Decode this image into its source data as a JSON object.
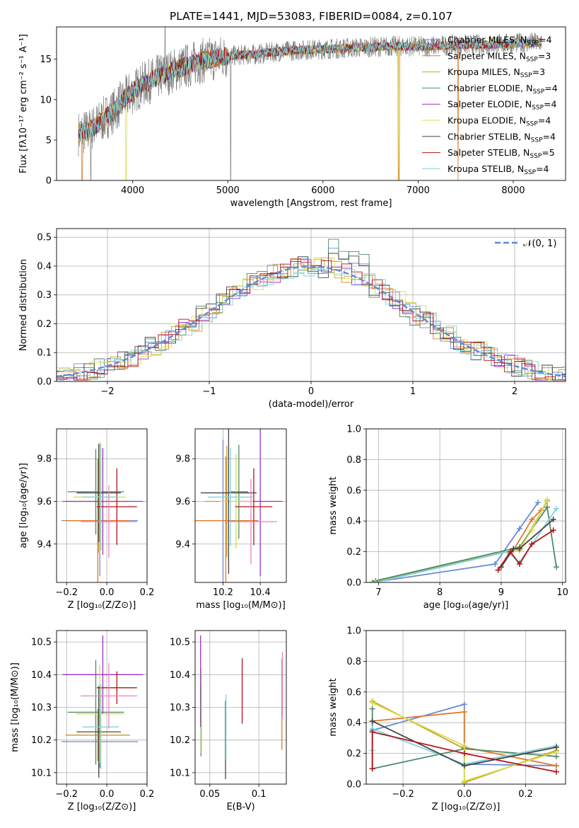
{
  "colors": {
    "grid": "#b0b0b0",
    "axis": "#000000",
    "background": "#ffffff"
  },
  "chart_data": [
    {
      "type": "line",
      "title": "PLATE=1441, MJD=53083, FIBERID=0084, z=0.107",
      "xlabel": "wavelength [Angstrom, rest frame]",
      "ylabel": "Flux [fλ10⁻¹⁷ erg cm⁻² s⁻¹ A⁻¹]",
      "xlim": [
        3200,
        8550
      ],
      "ylim": [
        0,
        19
      ],
      "xticks": [
        4000,
        5000,
        6000,
        7000,
        8000
      ],
      "yticks": [
        0,
        5,
        10,
        15
      ],
      "grid": false,
      "legend_position": "upper right",
      "spectrum_envelope": {
        "x": [
          3430,
          3550,
          3650,
          3800,
          3950,
          4100,
          4300,
          4500,
          4700,
          4900,
          5100,
          5300,
          5500,
          5700,
          5900,
          6100,
          6300,
          6500,
          6700,
          6900,
          7100,
          7300,
          7500,
          7700,
          7900,
          8100,
          8300
        ],
        "y": [
          5.8,
          6.2,
          7.2,
          8.6,
          10.5,
          11.8,
          13.0,
          13.9,
          14.7,
          15.2,
          15.5,
          15.6,
          15.9,
          16.1,
          16.2,
          16.3,
          16.4,
          16.5,
          16.6,
          16.6,
          16.6,
          16.7,
          16.8,
          16.8,
          16.9,
          17.0,
          17.1
        ]
      },
      "series": [
        {
          "name": "Chabrier MILES, N",
          "sub": "SSP",
          "value": "=4",
          "color": "#6a8bd6"
        },
        {
          "name": "Salpeter MILES, N",
          "sub": "SSP",
          "value": "=3",
          "color": "#e07a26"
        },
        {
          "name": "Kroupa MILES, N",
          "sub": "SSP",
          "value": "=3",
          "color": "#c8a030"
        },
        {
          "name": "Chabrier ELODIE, N",
          "sub": "SSP",
          "value": "=4",
          "color": "#4f8a66"
        },
        {
          "name": "Salpeter ELODIE, N",
          "sub": "SSP",
          "value": "=4",
          "color": "#9b30c9"
        },
        {
          "name": "Kroupa ELODIE, N",
          "sub": "SSP",
          "value": "=4",
          "color": "#d8dd48"
        },
        {
          "name": "Chabrier STELIB, N",
          "sub": "SSP",
          "value": "=4",
          "color": "#444444"
        },
        {
          "name": "Salpeter STELIB, N",
          "sub": "SSP",
          "value": "=5",
          "color": "#b0151b"
        },
        {
          "name": "Kroupa STELIB, N",
          "sub": "SSP",
          "value": "=4",
          "color": "#7fd3dc"
        }
      ],
      "observed_color": "#808080"
    },
    {
      "type": "line",
      "xlabel": "(data-model)/error",
      "ylabel": "Normed distribution",
      "xlim": [
        -2.5,
        2.5
      ],
      "ylim": [
        0,
        0.53
      ],
      "xticks": [
        -2,
        -1,
        0,
        1,
        2
      ],
      "yticks": [
        0.0,
        0.1,
        0.2,
        0.3,
        0.4,
        0.5
      ],
      "grid": true,
      "legend_position": "upper right",
      "legend": "𝒩(0, 1)",
      "gauss_color": "#5f8ad8"
    },
    {
      "type": "scatter",
      "xlabel": "Z [log₁₀(Z/Z⊙)]",
      "ylabel": "age  [log₁₀(age/yr)]",
      "xlim": [
        -0.25,
        0.2
      ],
      "ylim": [
        9.22,
        9.94
      ],
      "xticks": [
        -0.2,
        0.0,
        0.2
      ],
      "yticks": [
        9.4,
        9.6,
        9.8
      ],
      "grid": true,
      "points": [
        {
          "x": -0.035,
          "y": 9.51,
          "xerr": 0.19,
          "yerr": 0.26,
          "color": "#6a8bd6"
        },
        {
          "x": -0.045,
          "y": 9.51,
          "xerr": 0.16,
          "yerr": 0.29,
          "color": "#e07a26"
        },
        {
          "x": -0.04,
          "y": 9.6,
          "xerr": 0.15,
          "yerr": 0.24,
          "color": "#c8a030"
        },
        {
          "x": -0.055,
          "y": 9.645,
          "xerr": 0.14,
          "yerr": 0.2,
          "color": "#4f8a66"
        },
        {
          "x": -0.02,
          "y": 9.6,
          "xerr": 0.2,
          "yerr": 0.25,
          "color": "#9b30c9"
        },
        {
          "x": -0.035,
          "y": 9.62,
          "xerr": 0.13,
          "yerr": 0.26,
          "color": "#d8dd48"
        },
        {
          "x": -0.04,
          "y": 9.64,
          "xerr": 0.11,
          "yerr": 0.23,
          "color": "#444444"
        },
        {
          "x": 0.05,
          "y": 9.575,
          "xerr": 0.1,
          "yerr": 0.18,
          "color": "#b0151b"
        },
        {
          "x": -0.03,
          "y": 9.62,
          "xerr": 0.09,
          "yerr": 0.25,
          "color": "#7fd3dc"
        },
        {
          "x": 0.01,
          "y": 9.505,
          "xerr": 0.14,
          "yerr": 0.17,
          "color": "#ee82c0"
        }
      ]
    },
    {
      "type": "scatter",
      "xlabel": "mass [log₁₀(M/M⊙)]",
      "ylabel": "",
      "xlim": [
        10.05,
        10.54
      ],
      "ylim": [
        9.22,
        9.94
      ],
      "xticks": [
        10.2,
        10.4
      ],
      "yticks": [
        9.4,
        9.6,
        9.8
      ],
      "grid": true,
      "points": [
        {
          "x": 10.2,
          "y": 9.51,
          "xerr": 0.19,
          "yerr": 0.38,
          "color": "#6a8bd6"
        },
        {
          "x": 10.215,
          "y": 9.51,
          "xerr": 0.17,
          "yerr": 0.3,
          "color": "#e07a26"
        },
        {
          "x": 10.22,
          "y": 9.6,
          "xerr": 0.12,
          "yerr": 0.26,
          "color": "#c8a030"
        },
        {
          "x": 10.285,
          "y": 9.645,
          "xerr": 0.05,
          "yerr": 0.22,
          "color": "#4f8a66"
        },
        {
          "x": 10.4,
          "y": 9.6,
          "xerr": 0.12,
          "yerr": 0.35,
          "color": "#9b30c9"
        },
        {
          "x": 10.27,
          "y": 9.6,
          "xerr": 0.09,
          "yerr": 0.22,
          "color": "#d8dd48"
        },
        {
          "x": 10.23,
          "y": 9.64,
          "xerr": 0.15,
          "yerr": 0.38,
          "color": "#444444"
        },
        {
          "x": 10.365,
          "y": 9.575,
          "xerr": 0.1,
          "yerr": 0.18,
          "color": "#b0151b"
        },
        {
          "x": 10.24,
          "y": 9.62,
          "xerr": 0.12,
          "yerr": 0.23,
          "color": "#7fd3dc"
        },
        {
          "x": 10.35,
          "y": 9.505,
          "xerr": 0.14,
          "yerr": 0.2,
          "color": "#ee82c0"
        }
      ]
    },
    {
      "type": "line",
      "xlabel": "age  [log₁₀(age/yr)]",
      "ylabel": "mass weight",
      "xlim": [
        6.8,
        10.05
      ],
      "ylim": [
        0,
        1
      ],
      "xticks": [
        7,
        8,
        9,
        10
      ],
      "yticks": [
        0.0,
        0.2,
        0.4,
        0.6,
        0.8,
        1.0
      ],
      "grid": true,
      "series": [
        {
          "color": "#6a8bd6",
          "x": [
            6.9,
            8.9,
            9.3,
            9.6
          ],
          "y": [
            0.0,
            0.12,
            0.35,
            0.52
          ]
        },
        {
          "color": "#e07a26",
          "x": [
            6.9,
            9.2,
            9.5,
            9.65
          ],
          "y": [
            0.0,
            0.21,
            0.41,
            0.47
          ]
        },
        {
          "color": "#c8a030",
          "x": [
            6.9,
            9.2,
            9.3,
            9.75
          ],
          "y": [
            0.0,
            0.21,
            0.21,
            0.53
          ]
        },
        {
          "color": "#4f8a66",
          "x": [
            6.95,
            9.3,
            9.75,
            9.9
          ],
          "y": [
            0.01,
            0.23,
            0.49,
            0.1
          ]
        },
        {
          "color": "#d8dd48",
          "x": [
            6.95,
            9.3,
            9.5,
            9.75
          ],
          "y": [
            0.0,
            0.22,
            0.34,
            0.54
          ]
        },
        {
          "color": "#7fd3dc",
          "x": [
            6.95,
            9.1,
            9.3,
            9.9
          ],
          "y": [
            0.0,
            0.2,
            0.13,
            0.48
          ]
        },
        {
          "color": "#444444",
          "x": [
            9.0,
            9.2,
            9.3,
            9.85
          ],
          "y": [
            0.1,
            0.22,
            0.22,
            0.41
          ]
        },
        {
          "color": "#b0151b",
          "x": [
            8.95,
            9.15,
            9.3,
            9.5,
            9.85
          ],
          "y": [
            0.08,
            0.2,
            0.12,
            0.25,
            0.34
          ]
        }
      ]
    },
    {
      "type": "scatter",
      "xlabel": "Z [log₁₀(Z/Z⊙)]",
      "ylabel": "mass [log₁₀(M/M⊙)]",
      "xlim": [
        -0.25,
        0.2
      ],
      "ylim": [
        10.065,
        10.535
      ],
      "xticks": [
        -0.2,
        0.0,
        0.2
      ],
      "yticks": [
        10.1,
        10.2,
        10.3,
        10.4,
        10.5
      ],
      "grid": true,
      "points": [
        {
          "x": -0.035,
          "y": 10.195,
          "xerr": 0.19,
          "yerr": 0.08,
          "color": "#6a8bd6"
        },
        {
          "x": -0.045,
          "y": 10.215,
          "xerr": 0.16,
          "yerr": 0.08,
          "color": "#e07a26"
        },
        {
          "x": -0.04,
          "y": 10.215,
          "xerr": 0.15,
          "yerr": 0.12,
          "color": "#c8a030"
        },
        {
          "x": -0.055,
          "y": 10.285,
          "xerr": 0.14,
          "yerr": 0.16,
          "color": "#4f8a66"
        },
        {
          "x": -0.02,
          "y": 10.4,
          "xerr": 0.2,
          "yerr": 0.12,
          "color": "#9b30c9"
        },
        {
          "x": -0.035,
          "y": 10.28,
          "xerr": 0.12,
          "yerr": 0.15,
          "color": "#d8dd48"
        },
        {
          "x": -0.04,
          "y": 10.225,
          "xerr": 0.11,
          "yerr": 0.14,
          "color": "#444444"
        },
        {
          "x": 0.05,
          "y": 10.36,
          "xerr": 0.1,
          "yerr": 0.05,
          "color": "#b0151b"
        },
        {
          "x": -0.03,
          "y": 10.24,
          "xerr": 0.09,
          "yerr": 0.13,
          "color": "#7fd3dc"
        },
        {
          "x": 0.01,
          "y": 10.335,
          "xerr": 0.14,
          "yerr": 0.1,
          "color": "#ee82c0"
        }
      ]
    },
    {
      "type": "scatter",
      "xlabel": "E(B-V)",
      "ylabel": "",
      "xlim": [
        0.035,
        0.128
      ],
      "ylim": [
        10.065,
        10.535
      ],
      "xticks": [
        0.05,
        0.1
      ],
      "yticks": [
        10.1,
        10.2,
        10.3,
        10.4,
        10.5
      ],
      "grid": true,
      "points": [
        {
          "x": 0.0405,
          "y": 10.38,
          "xerr": 0,
          "yerr": 0.14,
          "color": "#9b30c9"
        },
        {
          "x": 0.041,
          "y": 10.26,
          "xerr": 0,
          "yerr": 0.11,
          "color": "#4f8a66"
        },
        {
          "x": 0.0415,
          "y": 10.29,
          "xerr": 0,
          "yerr": 0.13,
          "color": "#d8dd48"
        },
        {
          "x": 0.066,
          "y": 10.2,
          "xerr": 0,
          "yerr": 0.12,
          "color": "#444444"
        },
        {
          "x": 0.0665,
          "y": 10.24,
          "xerr": 0,
          "yerr": 0.1,
          "color": "#7fd3dc"
        },
        {
          "x": 0.083,
          "y": 10.35,
          "xerr": 0,
          "yerr": 0.1,
          "color": "#b0151b"
        },
        {
          "x": 0.1235,
          "y": 10.31,
          "xerr": 0,
          "yerr": 0.14,
          "color": "#e07a26"
        },
        {
          "x": 0.124,
          "y": 10.37,
          "xerr": 0,
          "yerr": 0.1,
          "color": "#ee82c0"
        }
      ]
    },
    {
      "type": "line",
      "xlabel": "Z [log₁₀(Z/Z⊙)]",
      "ylabel": "mass weight",
      "xlim": [
        -0.32,
        0.33
      ],
      "ylim": [
        0,
        1
      ],
      "xticks": [
        -0.2,
        0.0,
        0.2
      ],
      "yticks": [
        0.0,
        0.2,
        0.4,
        0.6,
        0.8,
        1.0
      ],
      "grid": true,
      "series": [
        {
          "color": "#6a8bd6",
          "x": [
            -0.3,
            0.0,
            0.0,
            0.3
          ],
          "y": [
            0.35,
            0.52,
            0.13,
            0.12
          ]
        },
        {
          "color": "#e07a26",
          "x": [
            -0.3,
            0.0,
            0.0,
            0.3
          ],
          "y": [
            0.41,
            0.47,
            0.24,
            0.12
          ]
        },
        {
          "color": "#c8a030",
          "x": [
            -0.3,
            0.0,
            0.0,
            0.3
          ],
          "y": [
            0.54,
            0.23,
            0.01,
            0.22
          ]
        },
        {
          "color": "#4f8a66",
          "x": [
            -0.3,
            -0.3,
            0.0,
            0.3
          ],
          "y": [
            0.49,
            0.1,
            0.23,
            0.18
          ]
        },
        {
          "color": "#d8dd48",
          "x": [
            -0.3,
            0.0,
            0.0,
            0.3
          ],
          "y": [
            0.53,
            0.25,
            0.02,
            0.21
          ]
        },
        {
          "color": "#7fd3dc",
          "x": [
            -0.3,
            -0.3,
            0.0,
            0.3
          ],
          "y": [
            0.22,
            0.36,
            0.13,
            0.25
          ]
        },
        {
          "color": "#444444",
          "x": [
            -0.3,
            0.0,
            0.3
          ],
          "y": [
            0.41,
            0.12,
            0.24
          ]
        },
        {
          "color": "#b0151b",
          "x": [
            -0.3,
            -0.3,
            0.0,
            0.3
          ],
          "y": [
            0.1,
            0.34,
            0.2,
            0.08
          ]
        }
      ]
    }
  ]
}
